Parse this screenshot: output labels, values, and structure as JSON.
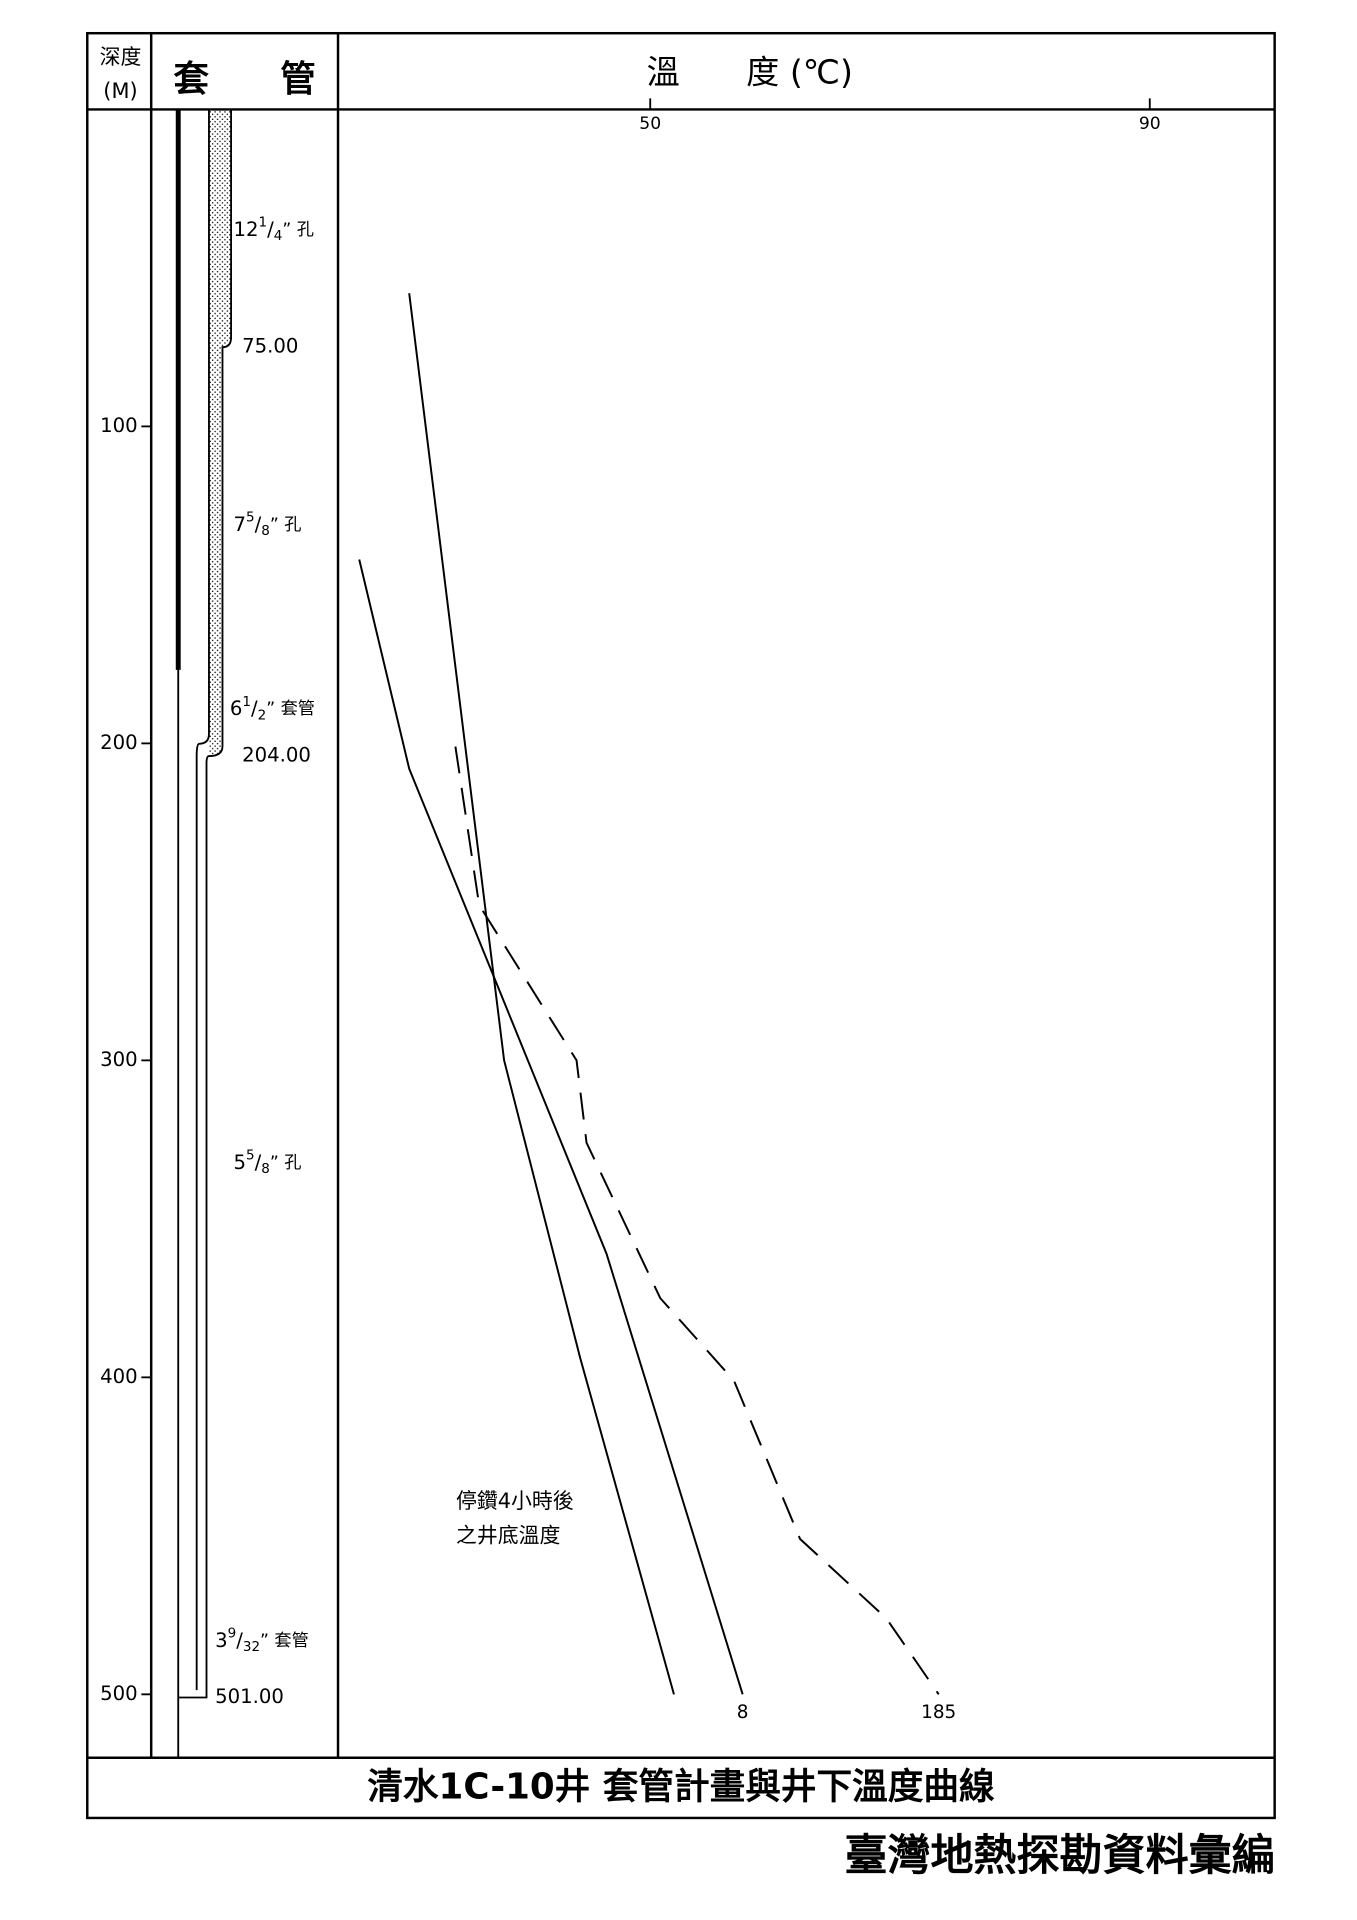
{
  "header": {
    "depth_label_lines": [
      "深度",
      "(M)"
    ],
    "casing_label": "套　　管"
  },
  "chart_data": {
    "type": "line",
    "title": "清水1C-10井 套管計畫與井下溫度曲線",
    "x_label": "溫　　度 (℃)",
    "xlim": [
      25,
      100
    ],
    "xticks": [
      50,
      90
    ],
    "ylim": [
      0,
      520
    ],
    "yticks": [
      100,
      200,
      300,
      400,
      500
    ],
    "annotation": [
      "停鑽4小時後",
      "之井底溫度"
    ],
    "series": [
      {
        "color": "#000000",
        "line_style": "solid",
        "depths": [
          58,
          300,
          394,
          500
        ],
        "values": [
          30.7,
          38.3,
          44.4,
          51.9
        ]
      },
      {
        "name": "8",
        "color": "#000000",
        "line_style": "solid",
        "depths": [
          142,
          208,
          361,
          500
        ],
        "values": [
          26.7,
          30.7,
          46.5,
          57.4
        ]
      },
      {
        "name": "185",
        "color": "#000000",
        "line_style": "dashed",
        "depths": [
          201,
          251,
          300,
          326,
          375,
          401,
          451,
          476,
          500
        ],
        "values": [
          34.4,
          36.3,
          44.1,
          44.9,
          50.8,
          56.7,
          62.0,
          68.9,
          73.1
        ]
      }
    ]
  },
  "casing": {
    "depth_marks": [
      {
        "value": 75,
        "label": "75.00"
      },
      {
        "value": 204,
        "label": "204.00"
      },
      {
        "value": 501,
        "label": "501.00"
      }
    ],
    "annotations": [
      {
        "whole": "12",
        "num": "1",
        "slash": "/",
        "den": "4",
        "unit": "” 孔"
      },
      {
        "whole": "7",
        "num": "5",
        "slash": "/",
        "den": "8",
        "unit": "” 孔"
      },
      {
        "whole": "6",
        "num": "1",
        "slash": "/",
        "den": "2",
        "unit": "” 套管"
      },
      {
        "whole": "5",
        "num": "5",
        "slash": "/",
        "den": "8",
        "unit": "” 孔"
      },
      {
        "whole": "3",
        "num": "9",
        "slash": "/",
        "den": "32",
        "unit": "” 套管"
      }
    ]
  },
  "footer": "臺灣地熱探勘資料彙編"
}
